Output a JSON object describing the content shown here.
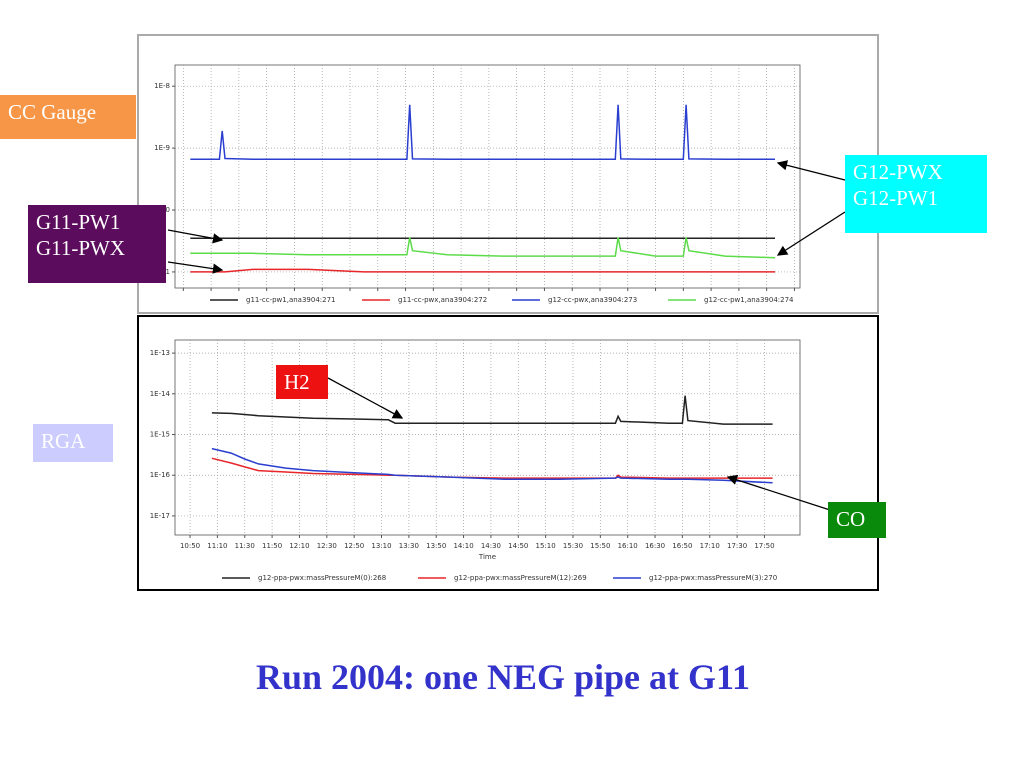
{
  "chart_data": [
    {
      "type": "line",
      "yscale": "log",
      "grid": true,
      "xtick_labels": false,
      "xlim": [
        644,
        1094
      ],
      "ylim": [
        5.5e-12,
        2.2e-08
      ],
      "xticks": [
        650,
        670,
        690,
        710,
        730,
        750,
        770,
        790,
        810,
        830,
        850,
        870,
        890,
        910,
        930,
        950,
        970,
        990,
        1010,
        1030,
        1050,
        1070,
        1090
      ],
      "yticks": [
        {
          "value": 1e-08,
          "label": "1E-8"
        },
        {
          "value": 1e-09,
          "label": "1E-9"
        },
        {
          "value": 1e-10,
          "label": "1E-10"
        },
        {
          "value": 1e-11,
          "label": "1E-11"
        }
      ],
      "x": [
        655,
        676,
        678,
        680,
        700,
        740,
        780,
        811,
        813,
        815,
        840,
        880,
        920,
        961,
        963,
        965,
        990,
        1010,
        1012,
        1014,
        1040,
        1076
      ],
      "series": [
        {
          "name": "g11-cc-pw1,ana3904:271",
          "color": "#222222",
          "values": [
            3.5e-11,
            3.5e-11,
            3.5e-11,
            3.5e-11,
            3.5e-11,
            3.5e-11,
            3.5e-11,
            3.5e-11,
            3.5e-11,
            3.5e-11,
            3.5e-11,
            3.5e-11,
            3.5e-11,
            3.5e-11,
            3.5e-11,
            3.5e-11,
            3.5e-11,
            3.5e-11,
            3.5e-11,
            3.5e-11,
            3.5e-11,
            3.5e-11
          ]
        },
        {
          "name": "g11-cc-pwx,ana3904:272",
          "color": "#e8262a",
          "values": [
            1e-11,
            1e-11,
            1e-11,
            1e-11,
            1.1e-11,
            1.1e-11,
            1e-11,
            1e-11,
            1e-11,
            1e-11,
            1e-11,
            1e-11,
            1e-11,
            1e-11,
            1e-11,
            1e-11,
            1e-11,
            1e-11,
            1e-11,
            1e-11,
            1e-11,
            1e-11
          ]
        },
        {
          "name": "g12-cc-pwx,ana3904:273",
          "color": "#2a3fd0",
          "values": [
            6.6e-10,
            6.6e-10,
            1.9e-09,
            6.8e-10,
            6.6e-10,
            6.6e-10,
            6.6e-10,
            6.6e-10,
            5e-09,
            6.7e-10,
            6.6e-10,
            6.6e-10,
            6.6e-10,
            6.6e-10,
            5e-09,
            6.7e-10,
            6.6e-10,
            6.6e-10,
            5e-09,
            6.7e-10,
            6.6e-10,
            6.6e-10
          ]
        },
        {
          "name": "g12-cc-pw1,ana3904:274",
          "color": "#5ddc4a",
          "values": [
            2e-11,
            2e-11,
            2e-11,
            2e-11,
            2e-11,
            1.9e-11,
            1.9e-11,
            1.9e-11,
            3.6e-11,
            2.2e-11,
            1.9e-11,
            1.8e-11,
            1.8e-11,
            1.8e-11,
            3.6e-11,
            2.2e-11,
            1.8e-11,
            1.8e-11,
            3.6e-11,
            2.2e-11,
            1.8e-11,
            1.7e-11
          ]
        }
      ]
    },
    {
      "type": "line",
      "yscale": "log",
      "grid": true,
      "xlabel": "Time",
      "xlim": [
        639,
        1096
      ],
      "ylim": [
        3.4e-18,
        2.1e-13
      ],
      "xticks": [
        {
          "value": 650,
          "label": "10:50"
        },
        {
          "value": 670,
          "label": "11:10"
        },
        {
          "value": 690,
          "label": "11:30"
        },
        {
          "value": 710,
          "label": "11:50"
        },
        {
          "value": 730,
          "label": "12:10"
        },
        {
          "value": 750,
          "label": "12:30"
        },
        {
          "value": 770,
          "label": "12:50"
        },
        {
          "value": 790,
          "label": "13:10"
        },
        {
          "value": 810,
          "label": "13:30"
        },
        {
          "value": 830,
          "label": "13:50"
        },
        {
          "value": 850,
          "label": "14:10"
        },
        {
          "value": 870,
          "label": "14:30"
        },
        {
          "value": 890,
          "label": "14:50"
        },
        {
          "value": 910,
          "label": "15:10"
        },
        {
          "value": 930,
          "label": "15:30"
        },
        {
          "value": 950,
          "label": "15:50"
        },
        {
          "value": 970,
          "label": "16:10"
        },
        {
          "value": 990,
          "label": "16:30"
        },
        {
          "value": 1010,
          "label": "16:50"
        },
        {
          "value": 1030,
          "label": "17:10"
        },
        {
          "value": 1050,
          "label": "17:30"
        },
        {
          "value": 1070,
          "label": "17:50"
        }
      ],
      "yticks": [
        {
          "value": 1e-13,
          "label": "1E-13"
        },
        {
          "value": 1e-14,
          "label": "1E-14"
        },
        {
          "value": 1e-15,
          "label": "1E-15"
        },
        {
          "value": 1e-16,
          "label": "1E-16"
        },
        {
          "value": 1e-17,
          "label": "1E-17"
        }
      ],
      "x": [
        666,
        680,
        690,
        700,
        720,
        740,
        770,
        795,
        800,
        840,
        880,
        920,
        961,
        963,
        965,
        1000,
        1010,
        1012,
        1014,
        1040,
        1076
      ],
      "series": [
        {
          "name": "g12-ppa-pwx:massPressureM(0):268",
          "color": "#222222",
          "values": [
            3.4e-15,
            3.3e-15,
            3.1e-15,
            2.9e-15,
            2.7e-15,
            2.5e-15,
            2.4e-15,
            2.3e-15,
            1.9e-15,
            1.9e-15,
            1.9e-15,
            1.9e-15,
            1.9e-15,
            2.8e-15,
            2.1e-15,
            1.9e-15,
            1.9e-15,
            9e-15,
            2.2e-15,
            1.8e-15,
            1.8e-15
          ]
        },
        {
          "name": "g12-ppa-pwx:massPressureM(12):269",
          "color": "#e8262a",
          "values": [
            2.6e-16,
            2e-16,
            1.6e-16,
            1.3e-16,
            1.2e-16,
            1.1e-16,
            1.05e-16,
            1e-16,
            1e-16,
            9e-17,
            8.5e-17,
            8.5e-17,
            8.5e-17,
            1e-16,
            9e-17,
            8.5e-17,
            8.5e-17,
            8.5e-17,
            8.5e-17,
            8.5e-17,
            8.5e-17
          ]
        },
        {
          "name": "g12-ppa-pwx:massPressureM(3):270",
          "color": "#2a3fd0",
          "values": [
            4.5e-16,
            3.5e-16,
            2.5e-16,
            1.9e-16,
            1.5e-16,
            1.3e-16,
            1.15e-16,
            1.05e-16,
            1e-16,
            9e-17,
            8e-17,
            8e-17,
            8.5e-17,
            9e-17,
            8.5e-17,
            8e-17,
            8e-17,
            8e-17,
            8e-17,
            7.5e-17,
            6.5e-17
          ]
        }
      ]
    }
  ],
  "slide": {
    "title": "Run 2004: one NEG pipe at G11",
    "cc_gauge": "CC Gauge",
    "rga": "RGA",
    "g11": [
      "G11-PW1",
      "G11-PWX"
    ],
    "g12": [
      "G12-PWX",
      "G12-PW1"
    ],
    "h2": "H2",
    "co": "CO"
  }
}
